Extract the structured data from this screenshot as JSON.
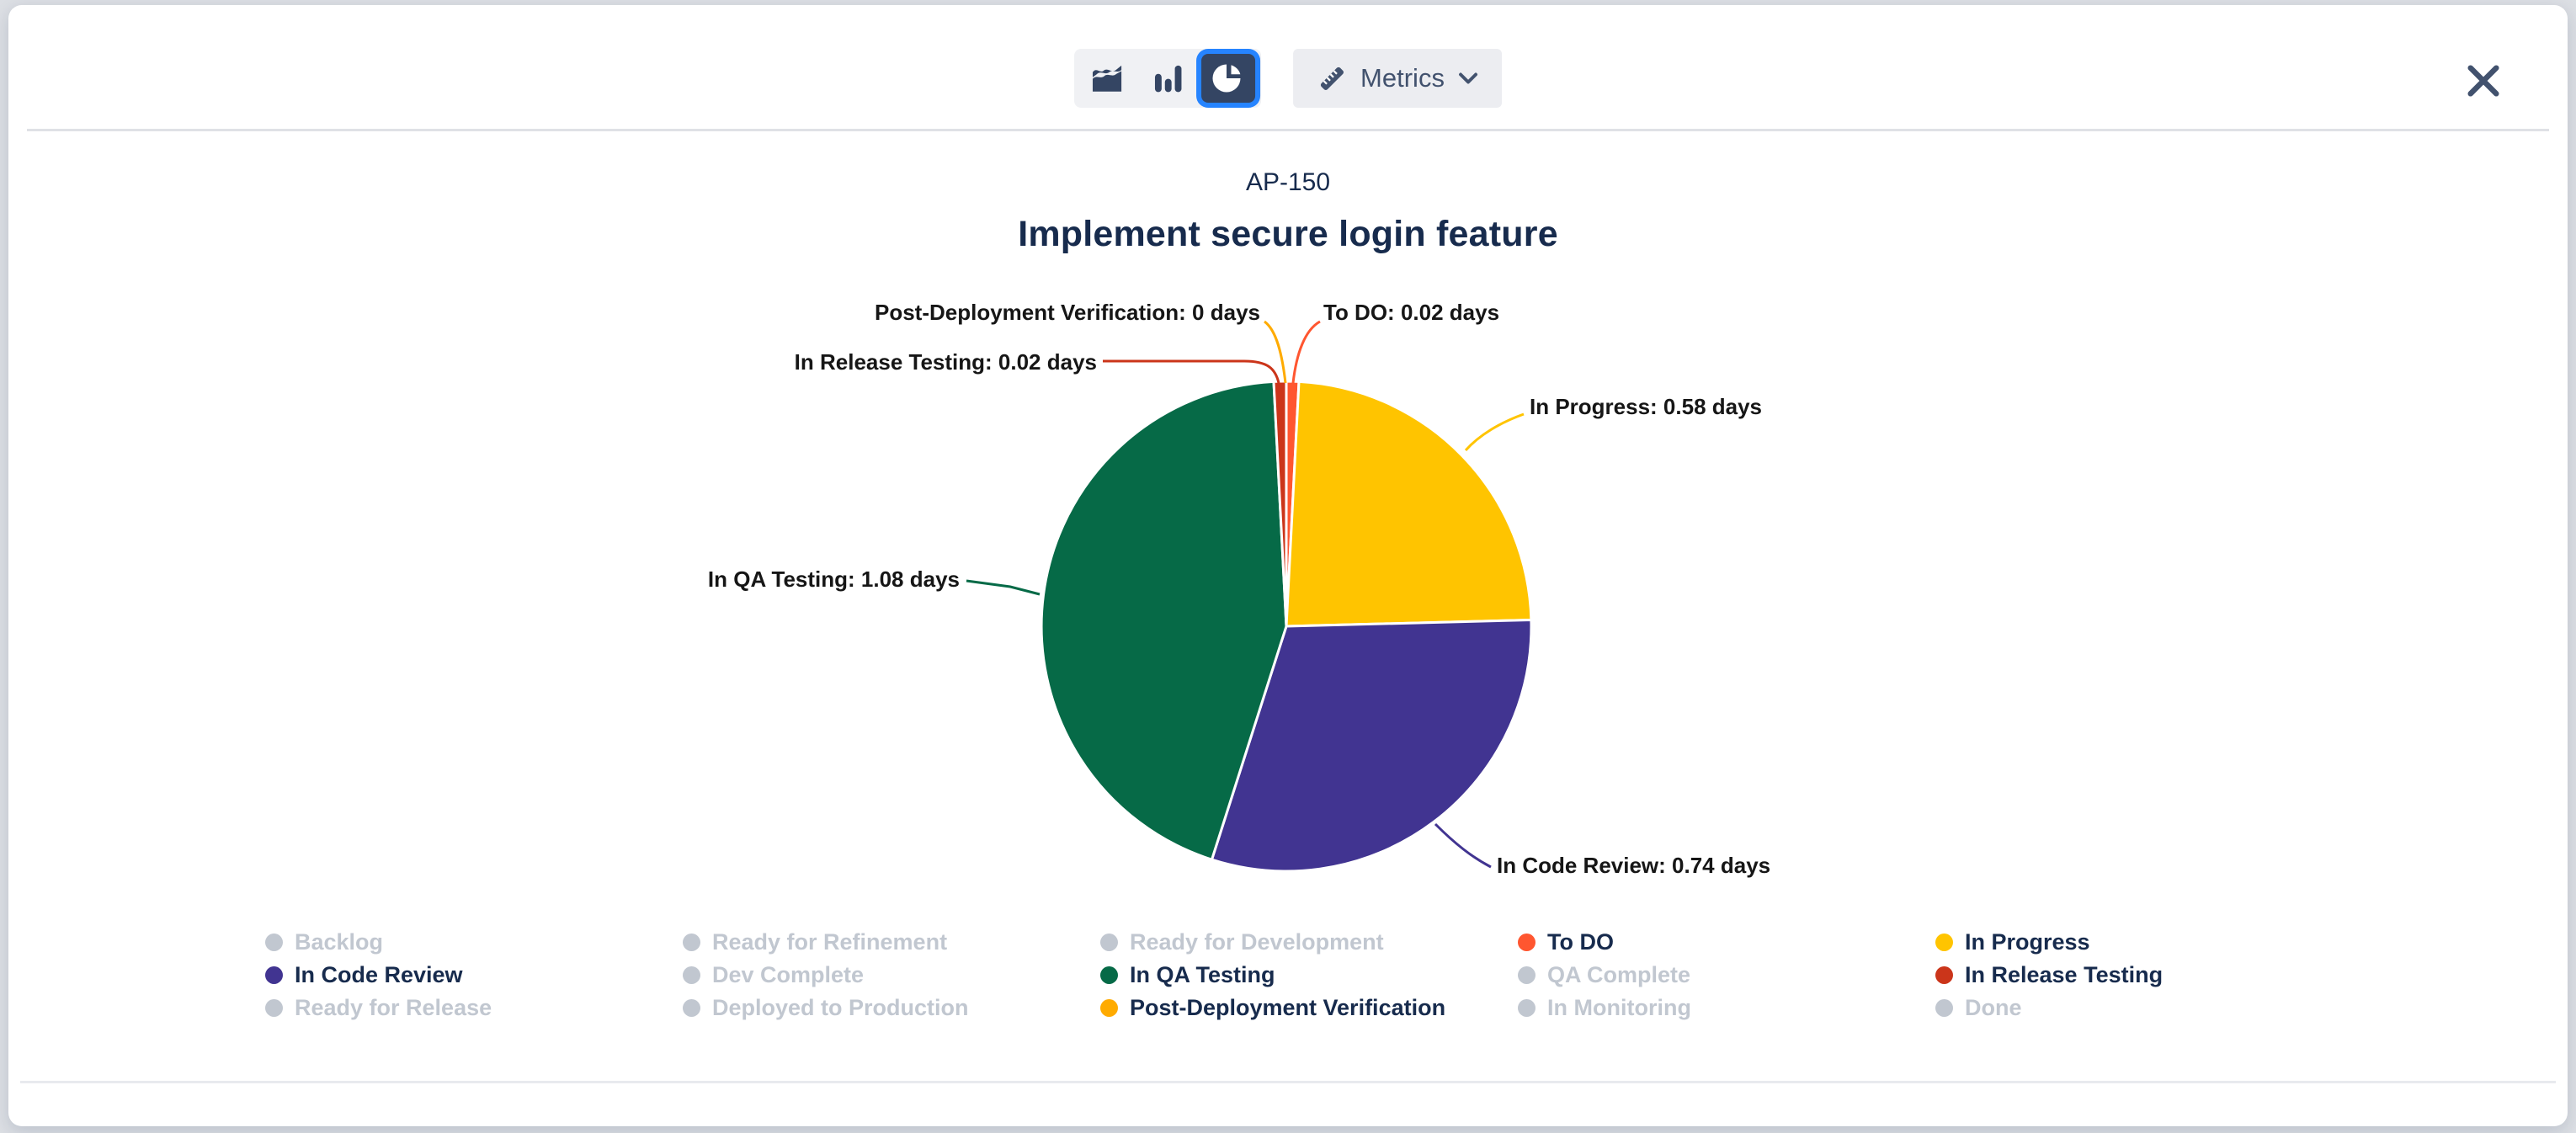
{
  "page": {
    "background": "#DCDFE4"
  },
  "toolbar": {
    "chart_type_options": [
      "area",
      "bar",
      "pie"
    ],
    "selected_chart_type": "pie",
    "metrics_label": "Metrics"
  },
  "dialog": {
    "issue_key": "AP-150",
    "title": "Implement secure login feature"
  },
  "chart_data": {
    "type": "pie",
    "title": "AP-150",
    "subtitle": "Implement secure login feature",
    "value_unit": "days",
    "slices": [
      {
        "label": "To DO",
        "value": 0.02,
        "color": "#FF5630"
      },
      {
        "label": "In Progress",
        "value": 0.58,
        "color": "#FFC400"
      },
      {
        "label": "In Code Review",
        "value": 0.74,
        "color": "#413491"
      },
      {
        "label": "In QA Testing",
        "value": 1.08,
        "color": "#066A47"
      },
      {
        "label": "In Release Testing",
        "value": 0.02,
        "color": "#CB351A"
      },
      {
        "label": "Post-Deployment Verification",
        "value": 0,
        "color": "#FFAB00"
      }
    ],
    "legend": [
      {
        "label": "Backlog",
        "active": false,
        "color": "#C1C7D0"
      },
      {
        "label": "Ready for Refinement",
        "active": false,
        "color": "#C1C7D0"
      },
      {
        "label": "Ready for Development",
        "active": false,
        "color": "#C1C7D0"
      },
      {
        "label": "To DO",
        "active": true,
        "color": "#FF5630"
      },
      {
        "label": "In Progress",
        "active": true,
        "color": "#FFC400"
      },
      {
        "label": "In Code Review",
        "active": true,
        "color": "#413491"
      },
      {
        "label": "Dev Complete",
        "active": false,
        "color": "#C1C7D0"
      },
      {
        "label": "In QA Testing",
        "active": true,
        "color": "#066A47"
      },
      {
        "label": "QA Complete",
        "active": false,
        "color": "#C1C7D0"
      },
      {
        "label": "In Release Testing",
        "active": true,
        "color": "#CB351A"
      },
      {
        "label": "Ready for Release",
        "active": false,
        "color": "#C1C7D0"
      },
      {
        "label": "Deployed to Production",
        "active": false,
        "color": "#C1C7D0"
      },
      {
        "label": "Post-Deployment Verification",
        "active": true,
        "color": "#FFAB00"
      },
      {
        "label": "In Monitoring",
        "active": false,
        "color": "#C1C7D0"
      },
      {
        "label": "Done",
        "active": false,
        "color": "#C1C7D0"
      }
    ]
  },
  "colors": {
    "accent_blue": "#2684FF",
    "icon_navy": "#344563",
    "text_navy": "#172B4D",
    "inactive_gray": "#C1C7D0",
    "divider": "#DFE1E6"
  }
}
